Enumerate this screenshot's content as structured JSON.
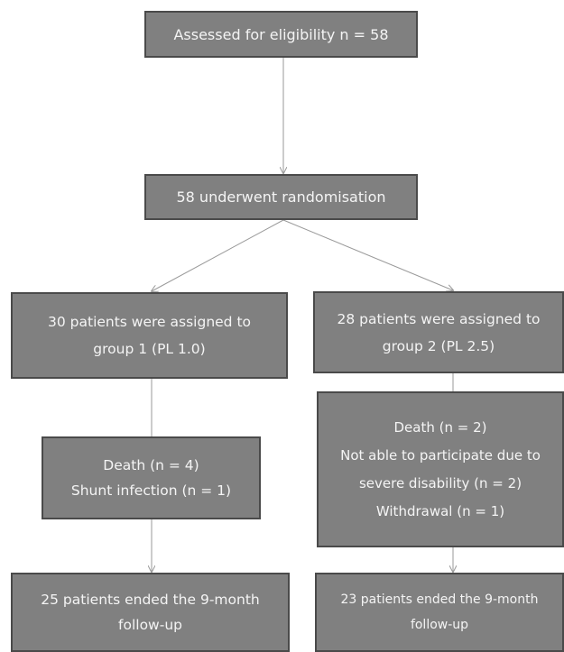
{
  "flowchart": {
    "assessed": {
      "text": "Assessed for eligibility n = 58"
    },
    "randomised": {
      "text": "58 underwent randomisation"
    },
    "group1": {
      "assigned": [
        "30 patients were assigned to",
        "group 1 (PL 1.0)"
      ],
      "excluded": [
        "Death (n = 4)",
        "Shunt infection (n = 1)"
      ],
      "ended": [
        "25 patients ended the 9-month",
        "follow-up"
      ]
    },
    "group2": {
      "assigned": [
        "28 patients were assigned to",
        "group 2 (PL 2.5)"
      ],
      "excluded": [
        "Death (n = 2)",
        "Not able to participate due to",
        "severe disability (n = 2)",
        "Withdrawal (n = 1)"
      ],
      "ended": [
        "23 patients ended the 9-month",
        "follow-up"
      ]
    }
  },
  "colors": {
    "box_fill": "#808080",
    "box_border": "#4a4a4a",
    "text": "#f4f4f4",
    "arrow": "#9a9a9a"
  }
}
